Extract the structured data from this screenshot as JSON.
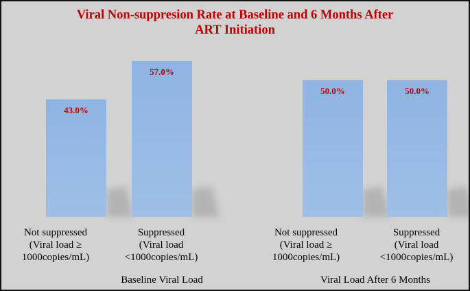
{
  "chart_data": {
    "type": "bar",
    "title_lines": [
      "Viral Non-suppresion Rate at Baseline and 6 Months After",
      "ART Initiation"
    ],
    "groups": [
      {
        "name": "Baseline Viral Load",
        "categories": [
          {
            "label_lines": [
              "Not suppressed",
              "(Viral load ≥",
              "1000copies/mL)"
            ],
            "value": 43.0,
            "label": "43.0%"
          },
          {
            "label_lines": [
              "Suppressed",
              "(Viral load",
              "<1000copies/mL)"
            ],
            "value": 57.0,
            "label": "57.0%"
          }
        ]
      },
      {
        "name": "Viral Load After 6 Months",
        "categories": [
          {
            "label_lines": [
              "Not suppressed",
              "(Viral load ≥",
              "1000copies/mL)"
            ],
            "value": 50.0,
            "label": "50.0%"
          },
          {
            "label_lines": [
              "Suppressed",
              "(Viral load",
              "<1000copies/mL)"
            ],
            "value": 50.0,
            "label": "50.0%"
          }
        ]
      }
    ],
    "ylim": [
      0,
      60
    ],
    "grid": false,
    "legend": "none",
    "colors": {
      "bar_top": "#8fb4e3",
      "bar_bottom": "#9fbfe6",
      "label_color": "#c00000",
      "shadow": "#a9a9a9",
      "background": "#d3d2d2"
    }
  }
}
